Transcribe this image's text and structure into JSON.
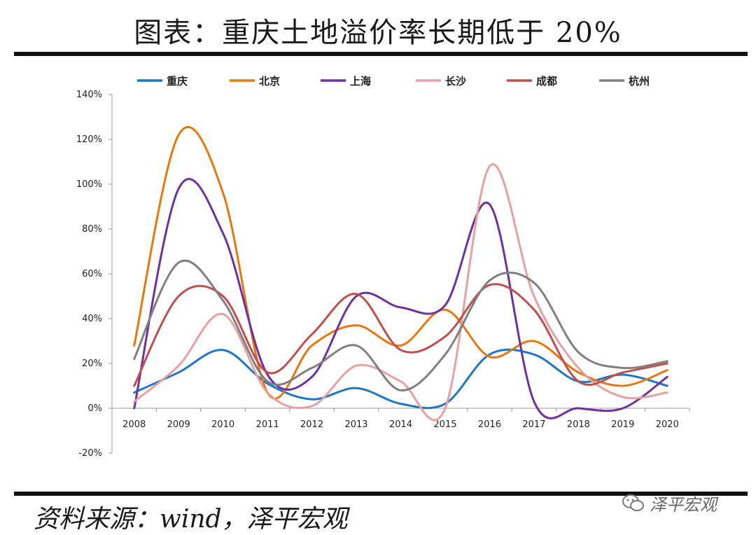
{
  "header": {
    "title": "图表：重庆土地溢价率长期低于 20%"
  },
  "footer": {
    "source": "资料来源：wind，泽平宏观",
    "watermark": "泽平宏观"
  },
  "chart_data": {
    "type": "line",
    "title": "",
    "xlabel": "",
    "ylabel": "",
    "categories": [
      "2008",
      "2009",
      "2010",
      "2011",
      "2012",
      "2013",
      "2014",
      "2015",
      "2016",
      "2017",
      "2018",
      "2019",
      "2020"
    ],
    "y_ticks": [
      "140%",
      "120%",
      "100%",
      "80%",
      "60%",
      "40%",
      "20%",
      "0%",
      "-20%"
    ],
    "ylim": [
      -20,
      140
    ],
    "y_unit": "%",
    "grid": false,
    "smooth": true,
    "legend": "top",
    "series": [
      {
        "name": "重庆",
        "color": "#1f77c4",
        "values": [
          7,
          16,
          26,
          11,
          4,
          9,
          2,
          2,
          24,
          24,
          12,
          15,
          10
        ]
      },
      {
        "name": "北京",
        "color": "#e8780c",
        "values": [
          28,
          122,
          96,
          7,
          28,
          37,
          28,
          44,
          23,
          30,
          16,
          10,
          17
        ]
      },
      {
        "name": "上海",
        "color": "#7030a0",
        "values": [
          0,
          98,
          78,
          15,
          14,
          50,
          45,
          46,
          91,
          3,
          0,
          0,
          14
        ]
      },
      {
        "name": "长沙",
        "color": "#e8a0a0",
        "values": [
          3,
          19,
          42,
          7,
          1,
          19,
          12,
          0,
          108,
          50,
          18,
          5,
          7
        ]
      },
      {
        "name": "成都",
        "color": "#c0504d",
        "values": [
          10,
          50,
          50,
          16,
          33,
          51,
          26,
          32,
          55,
          44,
          12,
          16,
          20
        ]
      },
      {
        "name": "杭州",
        "color": "#808080",
        "values": [
          22,
          65,
          48,
          12,
          18,
          28,
          8,
          24,
          57,
          56,
          25,
          18,
          21
        ]
      }
    ]
  }
}
